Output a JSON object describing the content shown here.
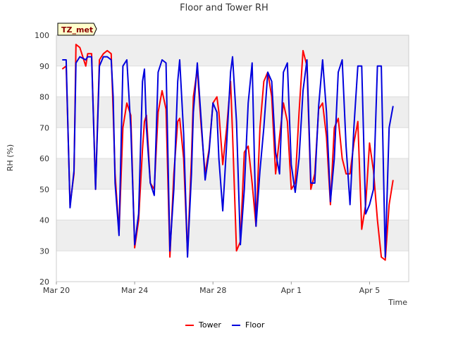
{
  "chart_data": {
    "type": "line",
    "title": "Floor and Tower RH",
    "xlabel": "Time",
    "ylabel": "RH (%)",
    "badge": "TZ_met",
    "xlim_days": [
      0,
      18
    ],
    "ylim": [
      20,
      100
    ],
    "y_ticks": [
      20,
      30,
      40,
      50,
      60,
      70,
      80,
      90,
      100
    ],
    "x_ticks": [
      {
        "day": 0,
        "label": "Mar 20"
      },
      {
        "day": 4,
        "label": "Mar 24"
      },
      {
        "day": 8,
        "label": "Mar 28"
      },
      {
        "day": 12,
        "label": "Apr 1"
      },
      {
        "day": 16,
        "label": "Apr 5"
      }
    ],
    "grid": true,
    "legend_position": "bottom-center",
    "series": [
      {
        "name": "Tower",
        "color": "#ff0000",
        "x": [
          0.3,
          0.5,
          0.7,
          0.9,
          1.0,
          1.2,
          1.5,
          1.6,
          1.8,
          2.0,
          2.2,
          2.4,
          2.6,
          2.8,
          2.9,
          3.0,
          3.2,
          3.4,
          3.6,
          3.8,
          4.0,
          4.2,
          4.4,
          4.5,
          4.6,
          4.8,
          5.0,
          5.2,
          5.4,
          5.6,
          5.8,
          6.0,
          6.2,
          6.3,
          6.5,
          6.7,
          6.9,
          7.0,
          7.2,
          7.4,
          7.6,
          7.8,
          8.0,
          8.2,
          8.3,
          8.5,
          8.7,
          8.9,
          9.0,
          9.2,
          9.4,
          9.6,
          9.8,
          10.0,
          10.2,
          10.4,
          10.6,
          10.8,
          11.0,
          11.2,
          11.4,
          11.6,
          11.8,
          12.0,
          12.2,
          12.4,
          12.6,
          12.8,
          13.0,
          13.2,
          13.4,
          13.6,
          13.8,
          14.0,
          14.2,
          14.4,
          14.6,
          14.8,
          15.0,
          15.2,
          15.4,
          15.6,
          15.8,
          16.0,
          16.2,
          16.4,
          16.6,
          16.8,
          17.0,
          17.2
        ],
        "values": [
          89,
          90,
          45,
          55,
          97,
          96,
          90,
          94,
          94,
          50,
          92,
          94,
          95,
          94,
          75,
          55,
          36,
          70,
          78,
          74,
          31,
          40,
          63,
          72,
          74,
          52,
          50,
          75,
          82,
          76,
          28,
          55,
          72,
          73,
          60,
          29,
          60,
          80,
          89,
          70,
          55,
          63,
          78,
          80,
          75,
          58,
          70,
          85,
          68,
          30,
          33,
          62,
          64,
          52,
          38,
          70,
          85,
          88,
          80,
          55,
          67,
          78,
          72,
          50,
          52,
          75,
          95,
          90,
          50,
          55,
          76,
          78,
          67,
          45,
          70,
          73,
          60,
          55,
          55,
          65,
          72,
          37,
          45,
          65,
          56,
          40,
          28,
          27,
          45,
          53
        ]
      },
      {
        "name": "Floor",
        "color": "#0000dd",
        "x": [
          0.3,
          0.5,
          0.7,
          0.9,
          1.0,
          1.2,
          1.5,
          1.6,
          1.8,
          2.0,
          2.2,
          2.4,
          2.6,
          2.8,
          2.9,
          3.0,
          3.2,
          3.4,
          3.6,
          3.8,
          4.0,
          4.2,
          4.4,
          4.5,
          4.6,
          4.8,
          5.0,
          5.2,
          5.4,
          5.6,
          5.8,
          6.0,
          6.2,
          6.3,
          6.5,
          6.7,
          6.9,
          7.0,
          7.2,
          7.4,
          7.6,
          7.8,
          8.0,
          8.2,
          8.3,
          8.5,
          8.7,
          8.9,
          9.0,
          9.2,
          9.4,
          9.6,
          9.8,
          10.0,
          10.2,
          10.4,
          10.6,
          10.8,
          11.0,
          11.2,
          11.4,
          11.6,
          11.8,
          12.0,
          12.2,
          12.4,
          12.6,
          12.8,
          13.0,
          13.2,
          13.4,
          13.6,
          13.8,
          14.0,
          14.2,
          14.4,
          14.6,
          14.8,
          15.0,
          15.2,
          15.4,
          15.6,
          15.8,
          16.0,
          16.2,
          16.4,
          16.6,
          16.8,
          17.0,
          17.2
        ],
        "values": [
          92,
          92,
          44,
          56,
          91,
          93,
          92,
          93,
          93,
          50,
          90,
          93,
          93,
          92,
          80,
          52,
          35,
          90,
          92,
          70,
          32,
          42,
          85,
          89,
          70,
          52,
          48,
          88,
          92,
          91,
          30,
          50,
          85,
          92,
          68,
          28,
          55,
          75,
          91,
          72,
          53,
          62,
          78,
          75,
          60,
          43,
          65,
          88,
          93,
          72,
          32,
          50,
          78,
          91,
          38,
          56,
          70,
          88,
          85,
          62,
          55,
          88,
          91,
          58,
          49,
          60,
          82,
          92,
          52,
          52,
          77,
          92,
          75,
          46,
          60,
          88,
          92,
          64,
          45,
          70,
          90,
          90,
          42,
          45,
          50,
          90,
          90,
          28,
          70,
          77
        ]
      }
    ]
  }
}
